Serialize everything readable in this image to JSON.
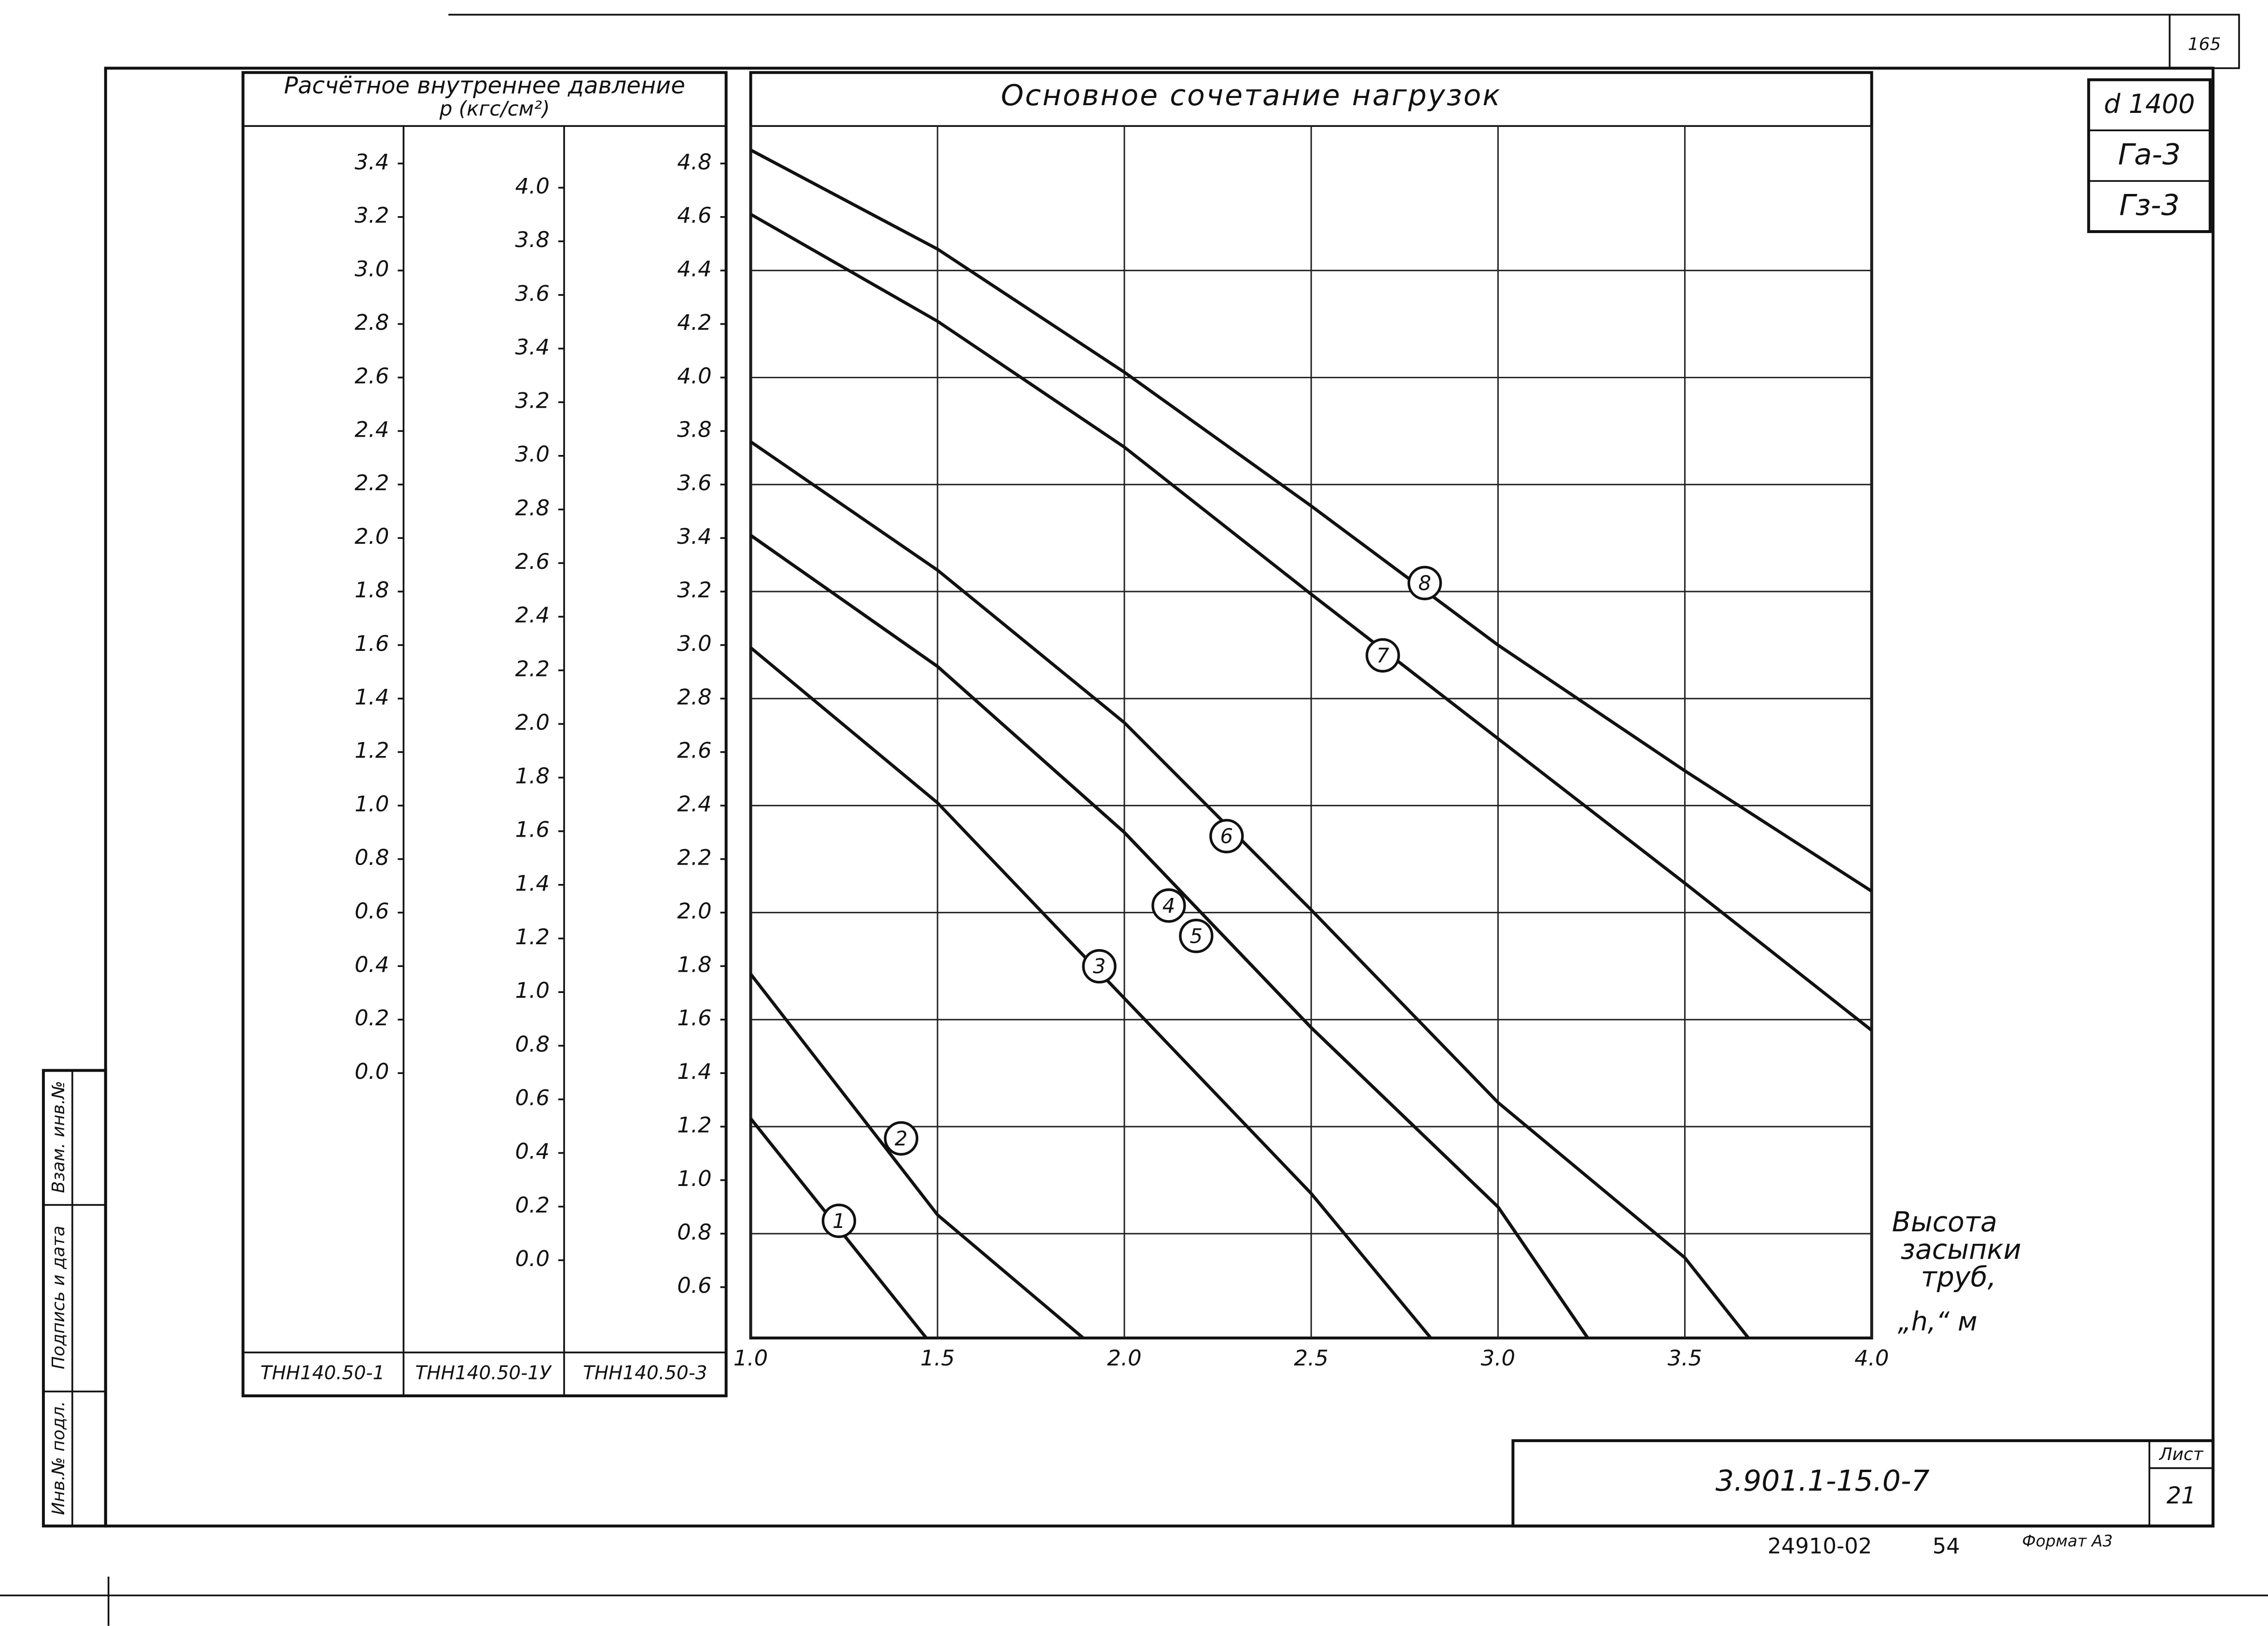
{
  "sheet": {
    "page_number": "165",
    "marks": [
      "d 1400",
      "Га-3",
      "Гз-3"
    ],
    "code": "3.901.1-15.0-7",
    "sheet_label": "Лист",
    "sheet_number": "21",
    "order": "24910-02",
    "order_part": "54",
    "format": "Формат А3",
    "side_fields": [
      "Инв.№ подл.",
      "Подпись и дата",
      "Взам. инв.№"
    ]
  },
  "chart_data": {
    "type": "line",
    "title": "Основное сочетание нагрузок",
    "ylabel": "Расчётное внутреннее давление",
    "yunit": "p (кгс/см²)",
    "xlabel": [
      "Высота",
      "засыпки",
      "труб,",
      "„h,“ м"
    ],
    "xlim": [
      1,
      4
    ],
    "xticks": [
      {
        "value": 1,
        "label": "1.0"
      },
      1.5,
      {
        "value": 2,
        "label": "2.0"
      },
      2.5,
      {
        "value": 3,
        "label": "3.0"
      },
      3.5,
      {
        "value": 4,
        "label": "4.0"
      }
    ],
    "ylim": [
      0.41,
      4.94
    ],
    "y_name": "ТНН140.50-3",
    "yticks": [
      4.8,
      4.6,
      4.4,
      4.2,
      {
        "value": 4,
        "label": "4.0"
      },
      3.8,
      3.6,
      3.4,
      3.2,
      {
        "value": 3,
        "label": "3.0"
      },
      2.8,
      2.6,
      2.4,
      2.2,
      {
        "value": 2,
        "label": "2.0"
      },
      1.8,
      1.6,
      1.4,
      1.2,
      {
        "value": 1,
        "label": "1.0"
      },
      0.8,
      0.6
    ],
    "ygrid": [
      4.4,
      4.0,
      3.6,
      3.2,
      2.8,
      2.4,
      2.0,
      1.6,
      1.2,
      0.8
    ],
    "grid": true,
    "scales": [
      {
        "name": "ТНН140.50-1",
        "lim": [
          -0.99,
          3.54
        ],
        "ticks": [
          3.4,
          3.2,
          {
            "value": 3,
            "label": "3.0"
          },
          2.8,
          2.6,
          2.4,
          2.2,
          {
            "value": 2,
            "label": "2.0"
          },
          1.8,
          1.6,
          1.4,
          1.2,
          {
            "value": 1,
            "label": "1.0"
          },
          0.8,
          0.6,
          0.4,
          0.2,
          {
            "value": 0,
            "label": "0.0"
          }
        ]
      },
      {
        "name": "ТНН140.50-1У",
        "lim": [
          -0.29,
          4.23
        ],
        "ticks": [
          {
            "value": 4,
            "label": "4.0"
          },
          3.8,
          3.6,
          3.4,
          3.2,
          {
            "value": 3,
            "label": "3.0"
          },
          2.8,
          2.6,
          2.4,
          2.2,
          {
            "value": 2,
            "label": "2.0"
          },
          1.8,
          1.6,
          1.4,
          1.2,
          {
            "value": 1,
            "label": "1.0"
          },
          0.8,
          0.6,
          0.4,
          0.2,
          {
            "value": 0,
            "label": "0.0"
          }
        ]
      }
    ],
    "series": [
      {
        "name": "1",
        "color": "#111111",
        "x": [
          1.0,
          1.47
        ],
        "values": [
          1.23,
          0.41
        ]
      },
      {
        "name": "2",
        "color": "#111111",
        "x": [
          1.0,
          1.5,
          1.89
        ],
        "values": [
          1.77,
          0.87,
          0.41
        ]
      },
      {
        "name": "3",
        "color": "#111111",
        "x": [
          1.0,
          1.5,
          2.0,
          2.5,
          2.82
        ],
        "values": [
          2.99,
          2.41,
          1.68,
          0.95,
          0.41
        ]
      },
      {
        "name": "4",
        "color": "#111111",
        "x": [
          1.0,
          1.5,
          2.0,
          2.5,
          3.0,
          3.24
        ],
        "values": [
          3.41,
          2.92,
          2.3,
          1.57,
          0.9,
          0.41
        ]
      },
      {
        "name": "5",
        "color": "#111111",
        "x": [
          1.0,
          1.5,
          2.0,
          2.5,
          3.0,
          3.24
        ],
        "values": [
          3.41,
          2.92,
          2.3,
          1.57,
          0.9,
          0.41
        ]
      },
      {
        "name": "6",
        "color": "#111111",
        "x": [
          1.0,
          1.5,
          2.0,
          2.5,
          3.0,
          3.5,
          3.67
        ],
        "values": [
          3.76,
          3.28,
          2.71,
          2.01,
          1.29,
          0.71,
          0.41
        ]
      },
      {
        "name": "7",
        "color": "#111111",
        "x": [
          1.0,
          1.5,
          2.0,
          2.5,
          3.0,
          3.5,
          4.0
        ],
        "values": [
          4.61,
          4.21,
          3.74,
          3.19,
          2.65,
          2.11,
          1.56
        ]
      },
      {
        "name": "8",
        "color": "#111111",
        "x": [
          1.0,
          1.5,
          2.0,
          2.5,
          3.0,
          3.5,
          4.0
        ],
        "values": [
          4.85,
          4.48,
          4.02,
          3.52,
          3.0,
          2.53,
          2.08
        ]
      }
    ]
  }
}
